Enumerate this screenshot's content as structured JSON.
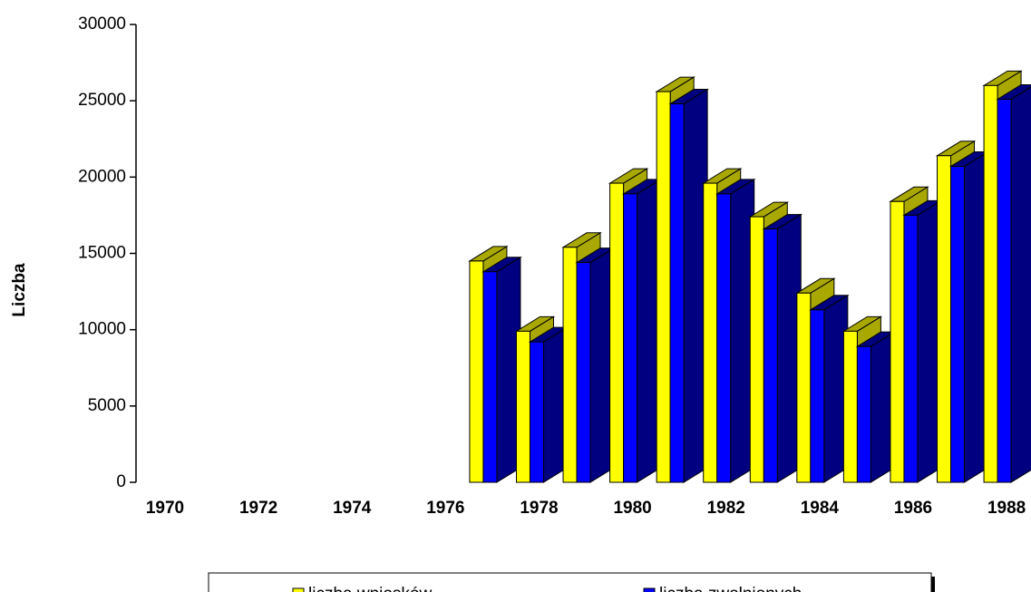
{
  "chart_data": {
    "type": "bar3d",
    "ylabel": "Liczba",
    "categories": [
      "1970",
      null,
      "1972",
      null,
      "1974",
      null,
      "1976",
      null,
      "1978",
      null,
      "1980",
      null,
      "1982",
      null,
      "1984",
      null,
      "1986",
      null,
      "1988"
    ],
    "series": [
      {
        "name": "liczba wniosków",
        "color": "#ffff00",
        "shade": "#a8a800",
        "values": [
          null,
          null,
          null,
          null,
          null,
          null,
          null,
          14500,
          9900,
          15400,
          19600,
          25600,
          19600,
          17400,
          12400,
          9900,
          18400,
          21400,
          26000
        ]
      },
      {
        "name": "liczba zwolnionych",
        "color": "#0000ff",
        "shade": "#000080",
        "values": [
          null,
          null,
          null,
          null,
          null,
          null,
          null,
          13800,
          9200,
          14400,
          18900,
          24800,
          18900,
          16600,
          11300,
          8900,
          17500,
          20700,
          25100
        ]
      }
    ],
    "ylim": [
      0,
      30000
    ],
    "yticks": [
      0,
      5000,
      10000,
      15000,
      20000,
      25000,
      30000
    ]
  }
}
